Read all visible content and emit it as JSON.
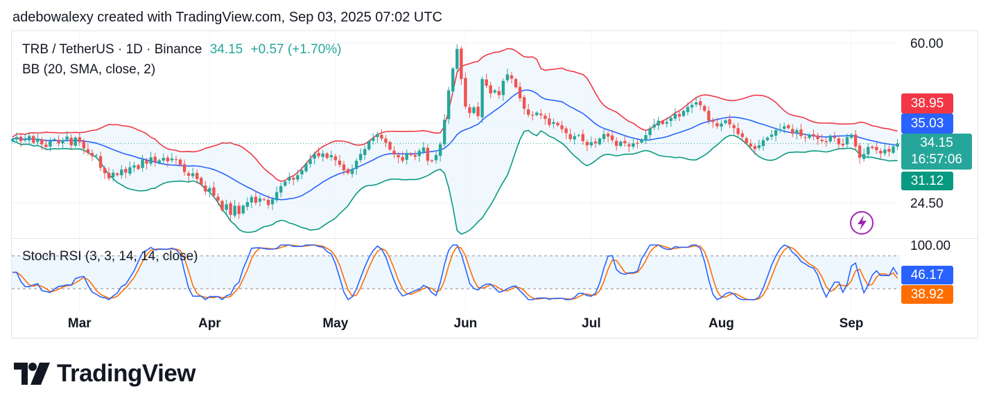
{
  "caption": "adebowalexy created with TradingView.com, Sep 03, 2025 07:02 UTC",
  "legend": {
    "symbol": "TRB / TetherUS · 1D · Binance",
    "last": "34.15",
    "change": "+0.57 (+1.70%)",
    "indicator": "BB (20, SMA, close, 2)",
    "oscillator": "Stoch RSI (3, 3, 14, 14, close)"
  },
  "tags": {
    "upper": "38.95",
    "basis": "35.03",
    "price": "34.15",
    "countdown": "16:57:06",
    "lower": "31.12",
    "k": "46.17",
    "d": "38.92"
  },
  "colors": {
    "up": "#26a69a",
    "down": "#ef5350",
    "upper_band": "#f23645",
    "basis": "#2962ff",
    "lower_band": "#089981",
    "band_fill": "#e3f2fd",
    "k_line": "#2962ff",
    "d_line": "#ff6d00"
  },
  "brand": "TradingView",
  "chart_data": {
    "type": "candlestick",
    "price_axis": {
      "labels": [
        "60.00",
        "24.50"
      ],
      "scale": "log"
    },
    "osc_axis": {
      "labels": [
        "100.00"
      ],
      "range": [
        0,
        100
      ],
      "guides": [
        80,
        20
      ]
    },
    "x_labels": [
      {
        "date": "2025-03-01",
        "label": "Mar"
      },
      {
        "date": "2025-04-01",
        "label": "Apr"
      },
      {
        "date": "2025-05-01",
        "label": "May"
      },
      {
        "date": "2025-06-01",
        "label": "Jun"
      },
      {
        "date": "2025-07-01",
        "label": "Jul"
      },
      {
        "date": "2025-08-01",
        "label": "Aug"
      },
      {
        "date": "2025-09-01",
        "label": "Sep"
      }
    ],
    "close": [
      35.0,
      35.4,
      34.6,
      34.9,
      35.6,
      34.3,
      35.1,
      34.0,
      33.5,
      34.6,
      35.0,
      34.2,
      34.8,
      35.5,
      33.8,
      35.3,
      34.4,
      33.2,
      32.4,
      31.8,
      32.0,
      29.8,
      28.9,
      28.1,
      29.0,
      28.6,
      29.5,
      29.0,
      29.9,
      30.2,
      29.6,
      31.2,
      30.5,
      31.6,
      30.8,
      31.1,
      31.5,
      30.9,
      31.4,
      31.2,
      30.3,
      29.1,
      28.5,
      28.9,
      28.0,
      27.1,
      26.1,
      26.6,
      25.5,
      24.8,
      23.5,
      24.3,
      22.9,
      24.1,
      23.0,
      24.1,
      24.6,
      25.3,
      24.5,
      25.1,
      24.9,
      24.2,
      25.0,
      26.0,
      26.9,
      27.6,
      28.3,
      27.9,
      28.6,
      29.4,
      30.5,
      31.3,
      32.2,
      31.8,
      32.3,
      31.5,
      32.0,
      31.1,
      30.3,
      29.4,
      28.9,
      29.6,
      31.0,
      32.2,
      33.1,
      34.6,
      35.2,
      36.0,
      35.1,
      34.3,
      33.0,
      32.1,
      31.6,
      31.0,
      32.4,
      32.0,
      31.7,
      32.8,
      33.4,
      31.0,
      30.9,
      32.0,
      34.0,
      39.0,
      46.0,
      52.0,
      58.0,
      49.0,
      42.0,
      40.5,
      41.8,
      39.8,
      49.0,
      47.2,
      45.2,
      46.0,
      44.8,
      48.5,
      50.3,
      49.1,
      46.8,
      44.0,
      41.5,
      40.1,
      39.9,
      40.6,
      40.0,
      39.2,
      37.9,
      38.5,
      37.8,
      37.0,
      36.2,
      35.0,
      35.6,
      35.8,
      34.6,
      33.8,
      34.4,
      34.2,
      35.1,
      36.0,
      35.5,
      34.8,
      33.7,
      34.5,
      34.2,
      33.6,
      34.2,
      34.1,
      34.9,
      35.8,
      37.2,
      38.0,
      38.8,
      38.1,
      38.5,
      39.4,
      40.3,
      39.7,
      41.0,
      41.9,
      42.4,
      43.0,
      42.3,
      41.0,
      38.8,
      38.5,
      37.6,
      38.2,
      38.9,
      38.0,
      37.2,
      36.0,
      35.4,
      34.2,
      33.6,
      33.1,
      33.8,
      34.8,
      35.3,
      35.9,
      36.8,
      37.0,
      37.6,
      37.2,
      36.1,
      36.8,
      35.6,
      35.3,
      35.9,
      35.5,
      35.0,
      34.6,
      34.4,
      35.7,
      35.2,
      34.0,
      33.8,
      35.4,
      35.9,
      33.6,
      31.5,
      32.2,
      33.5,
      33.3,
      32.9,
      32.3,
      33.0,
      32.6,
      33.6,
      34.15
    ],
    "stoch_rsi": {
      "k_last": 46.17,
      "d_last": 38.92
    }
  }
}
